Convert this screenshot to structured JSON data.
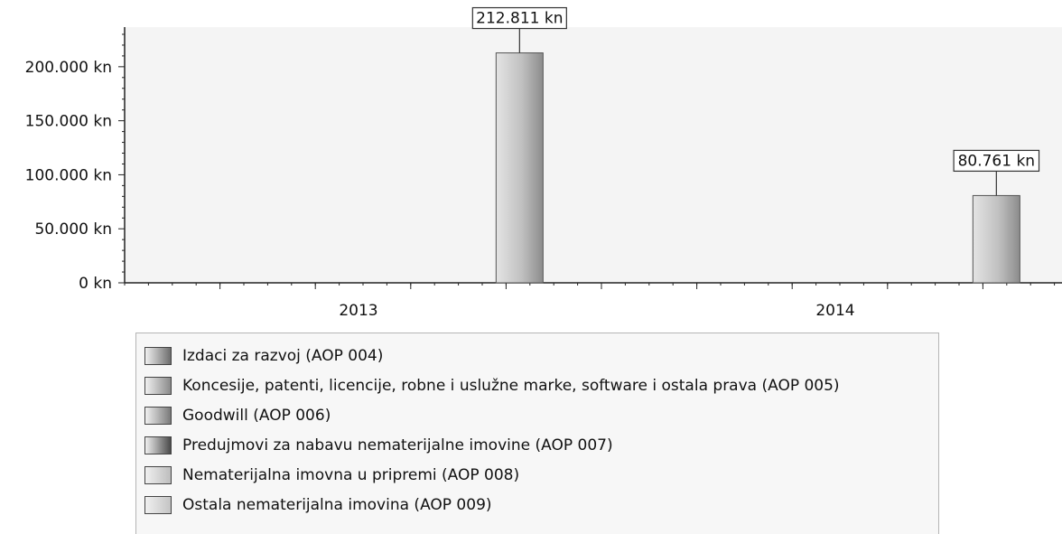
{
  "chart_data": {
    "type": "bar",
    "categories": [
      "2013",
      "2014"
    ],
    "series": [
      {
        "name": "Izdaci za razvoj (AOP 004)",
        "values": [
          0,
          0
        ],
        "color": "#6d6d6d"
      },
      {
        "name": "Koncesije, patenti, licencije, robne i uslužne marke, software i ostala prava (AOP 005)",
        "values": [
          0,
          0
        ],
        "color": "#8a8a8a"
      },
      {
        "name": "Goodwill (AOP 006)",
        "values": [
          0,
          0
        ],
        "color": "#7a7a7a"
      },
      {
        "name": "Predujmovi za nabavu nematerijalne imovine (AOP 007)",
        "values": [
          0,
          0
        ],
        "color": "#4a4a4a"
      },
      {
        "name": "Nematerijalna imovna u pripremi (AOP 008)",
        "values": [
          0,
          0
        ],
        "color": "#bdbdbd"
      },
      {
        "name": "Ostala nematerijalna imovina (AOP 009)",
        "values": [
          212811,
          80761
        ],
        "color": "#c4c4c4"
      }
    ],
    "data_labels": [
      "212.811 kn",
      "80.761 kn"
    ],
    "y_ticks": [
      0,
      50000,
      100000,
      150000,
      200000
    ],
    "y_tick_labels": [
      "0 kn",
      "50.000 kn",
      "100.000 kn",
      "150.000 kn",
      "200.000 kn"
    ],
    "ylim": [
      0,
      235000
    ],
    "title": "",
    "xlabel": "",
    "ylabel": "",
    "grid": false,
    "legend_position": "bottom"
  }
}
